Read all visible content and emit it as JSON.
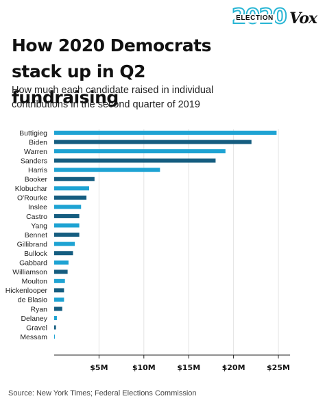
{
  "logo": {
    "election_year": "2020",
    "election_word": "ELECTION",
    "brand": "Vox"
  },
  "header": {
    "title": "How 2020 Democrats stack up in Q2 fundraising",
    "subtitle": "How much each candidate raised in individual contributions in the second quarter of 2019"
  },
  "footer": {
    "source": "Source: New York Times; Federal Elections Commission"
  },
  "colors": {
    "light_bar": "#1ea3d3",
    "dark_bar": "#155d80",
    "axis": "#222222",
    "grid": "#e3e3e3"
  },
  "chart_data": {
    "type": "bar",
    "orientation": "horizontal",
    "categories": [
      "Buttigieg",
      "Biden",
      "Warren",
      "Sanders",
      "Harris",
      "Booker",
      "Klobuchar",
      "O'Rourke",
      "Inslee",
      "Castro",
      "Yang",
      "Bennet",
      "Gillibrand",
      "Bullock",
      "Gabbard",
      "Williamson",
      "Moulton",
      "Hickenlooper",
      "de Blasio",
      "Ryan",
      "Delaney",
      "Gravel",
      "Messam"
    ],
    "values": [
      24.8,
      22.0,
      19.1,
      18.0,
      11.8,
      4.5,
      3.9,
      3.6,
      3.0,
      2.8,
      2.8,
      2.8,
      2.3,
      2.1,
      1.6,
      1.5,
      1.2,
      1.1,
      1.1,
      0.9,
      0.3,
      0.2,
      0.05
    ],
    "xlim": [
      0,
      26
    ],
    "x_ticks": [
      5,
      10,
      15,
      20,
      25
    ],
    "x_tick_labels": [
      "$5M",
      "$10M",
      "$15M",
      "$20M",
      "$25M"
    ],
    "grid": true,
    "legend": "none"
  }
}
